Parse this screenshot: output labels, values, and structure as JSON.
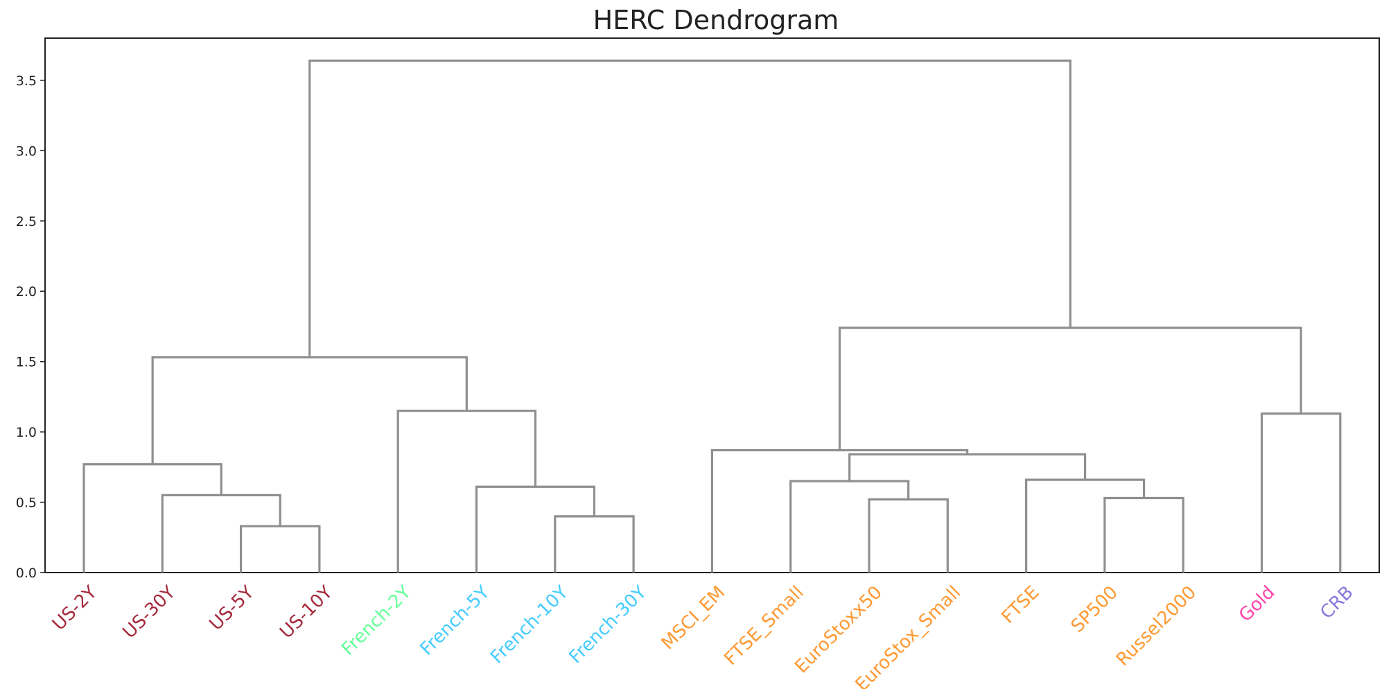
{
  "chart_data": {
    "type": "dendrogram",
    "title": "HERC Dendrogram",
    "xlabel": "",
    "ylabel": "",
    "ylim": [
      0,
      3.8
    ],
    "y_ticks": [
      "0.0",
      "0.5",
      "1.0",
      "1.5",
      "2.0",
      "2.5",
      "3.0",
      "3.5"
    ],
    "grid": false,
    "leaves": [
      {
        "label": "US-2Y",
        "color": "#a52a3c"
      },
      {
        "label": "US-30Y",
        "color": "#a52a3c"
      },
      {
        "label": "US-5Y",
        "color": "#a52a3c"
      },
      {
        "label": "US-10Y",
        "color": "#a52a3c"
      },
      {
        "label": "French-2Y",
        "color": "#66ff99"
      },
      {
        "label": "French-5Y",
        "color": "#44ccff"
      },
      {
        "label": "French-10Y",
        "color": "#44ccff"
      },
      {
        "label": "French-30Y",
        "color": "#44ccff"
      },
      {
        "label": "MSCI_EM",
        "color": "#ff9933"
      },
      {
        "label": "FTSE_Small",
        "color": "#ff9933"
      },
      {
        "label": "EuroStoxx50",
        "color": "#ff9933"
      },
      {
        "label": "EuroStox_Small",
        "color": "#ff9933"
      },
      {
        "label": "FTSE",
        "color": "#ff9933"
      },
      {
        "label": "SP500",
        "color": "#ff9933"
      },
      {
        "label": "Russel2000",
        "color": "#ff9933"
      },
      {
        "label": "Gold",
        "color": "#ff44aa"
      },
      {
        "label": "CRB",
        "color": "#8877dd"
      }
    ],
    "merges": [
      {
        "id": "m1",
        "left": "US-5Y",
        "right": "US-10Y",
        "height": 0.33
      },
      {
        "id": "m2",
        "left": "US-30Y",
        "right": "m1",
        "height": 0.55
      },
      {
        "id": "m3",
        "left": "US-2Y",
        "right": "m2",
        "height": 0.77
      },
      {
        "id": "m4",
        "left": "French-10Y",
        "right": "French-30Y",
        "height": 0.4
      },
      {
        "id": "m5",
        "left": "French-5Y",
        "right": "m4",
        "height": 0.61
      },
      {
        "id": "m6",
        "left": "French-2Y",
        "right": "m5",
        "height": 1.15
      },
      {
        "id": "m7",
        "left": "m3",
        "right": "m6",
        "height": 1.53
      },
      {
        "id": "m8",
        "left": "EuroStoxx50",
        "right": "EuroStox_Small",
        "height": 0.52
      },
      {
        "id": "m9",
        "left": "FTSE_Small",
        "right": "m8",
        "height": 0.65
      },
      {
        "id": "m10",
        "left": "SP500",
        "right": "Russel2000",
        "height": 0.53
      },
      {
        "id": "m11",
        "left": "FTSE",
        "right": "m10",
        "height": 0.66
      },
      {
        "id": "m12",
        "left": "m9",
        "right": "m11",
        "height": 0.84
      },
      {
        "id": "m13",
        "left": "MSCI_EM",
        "right": "m12",
        "height": 0.87
      },
      {
        "id": "m14",
        "left": "Gold",
        "right": "CRB",
        "height": 1.13
      },
      {
        "id": "m15",
        "left": "m13",
        "right": "m14",
        "height": 1.74
      },
      {
        "id": "m16",
        "left": "m7",
        "right": "m15",
        "height": 3.64
      }
    ]
  }
}
